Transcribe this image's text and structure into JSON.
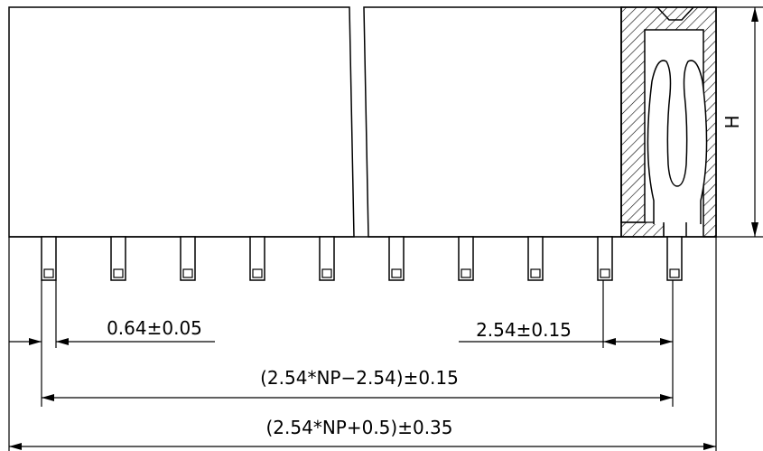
{
  "drawing": {
    "pin_width_dim": "0.64±0.05",
    "pitch_dim": "2.54±0.15",
    "pin_span_dim": "(2.54*NP−2.54)±0.15",
    "overall_length_dim": "(2.54*NP+0.5)±0.35",
    "height_dim": "H"
  },
  "pin_count_visible": 10,
  "colors": {
    "line": "#000000",
    "background": "#ffffff"
  }
}
